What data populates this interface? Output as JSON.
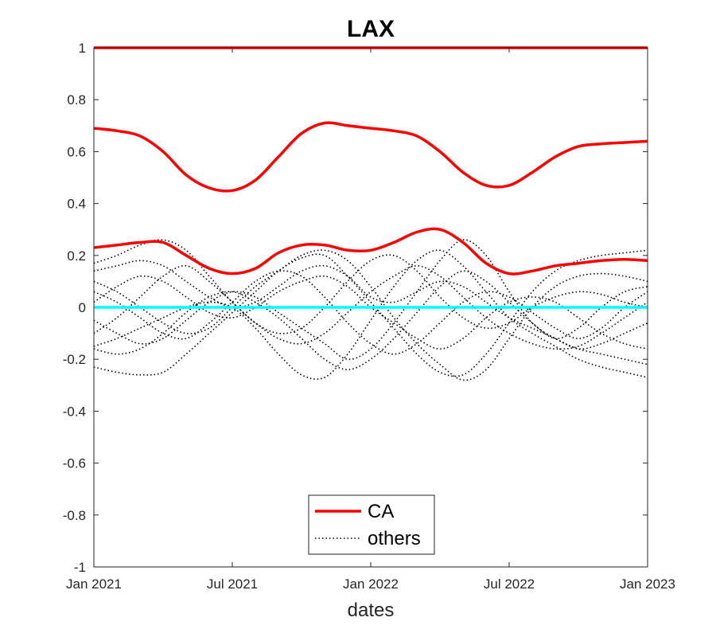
{
  "chart_data": {
    "type": "line",
    "title": "LAX",
    "xlabel": "dates",
    "ylabel": "",
    "ylim": [
      -1,
      1
    ],
    "xlim": [
      0,
      24
    ],
    "x_tick_values": [
      0,
      6,
      12,
      18,
      24
    ],
    "x_tick_labels": [
      "Jan 2021",
      "Jul 2021",
      "Jan 2022",
      "Jul 2022",
      "Jan 2023"
    ],
    "y_ticks": [
      -1,
      -0.8,
      -0.6,
      -0.4,
      -0.2,
      0,
      0.2,
      0.4,
      0.6,
      0.8,
      1
    ],
    "y_tick_labels": [
      "-1",
      "-0.8",
      "-0.6",
      "-0.4",
      "-0.2",
      "0",
      "0.2",
      "0.4",
      "0.6",
      "0.8",
      "1"
    ],
    "legend": {
      "location": "bottom-center",
      "entries": [
        "CA",
        "others"
      ]
    },
    "colors": {
      "ca": "#ff0000",
      "others": "#000000",
      "zero": "#00ffff"
    },
    "series": [
      {
        "name": "CA",
        "style": "solid",
        "color": "#ff0000",
        "x": [
          0,
          24
        ],
        "values": [
          1,
          1
        ]
      },
      {
        "name": "CA",
        "style": "solid",
        "color": "#ff0000",
        "x": [
          0,
          1,
          2,
          3,
          4,
          5,
          6,
          7,
          8,
          9,
          10,
          11,
          12,
          13,
          14,
          15,
          16,
          17,
          18,
          19,
          20,
          21,
          22,
          23,
          24
        ],
        "values": [
          0.69,
          0.68,
          0.66,
          0.6,
          0.51,
          0.46,
          0.45,
          0.49,
          0.58,
          0.67,
          0.71,
          0.7,
          0.69,
          0.68,
          0.66,
          0.6,
          0.52,
          0.47,
          0.47,
          0.52,
          0.58,
          0.62,
          0.63,
          0.635,
          0.64
        ]
      },
      {
        "name": "CA",
        "style": "solid",
        "color": "#ff0000",
        "x": [
          0,
          1,
          2,
          3,
          4,
          5,
          6,
          7,
          8,
          9,
          10,
          11,
          12,
          13,
          14,
          15,
          16,
          17,
          18,
          19,
          20,
          21,
          22,
          23,
          24
        ],
        "values": [
          0.23,
          0.24,
          0.25,
          0.25,
          0.2,
          0.15,
          0.13,
          0.15,
          0.21,
          0.24,
          0.24,
          0.22,
          0.22,
          0.25,
          0.29,
          0.3,
          0.25,
          0.17,
          0.13,
          0.14,
          0.16,
          0.17,
          0.18,
          0.185,
          0.18
        ]
      },
      {
        "name": "zero",
        "style": "solid",
        "color": "#00ffff",
        "x": [
          0,
          24
        ],
        "values": [
          0,
          0
        ]
      },
      {
        "name": "others",
        "style": "dotted",
        "color": "#000000",
        "x": [
          0,
          1,
          2,
          3,
          4,
          5,
          6,
          7,
          8,
          9,
          10,
          11,
          12,
          13,
          14,
          15,
          16,
          17,
          18,
          19,
          20,
          21,
          22,
          23,
          24
        ],
        "values": [
          -0.23,
          -0.25,
          -0.26,
          -0.25,
          -0.18,
          -0.1,
          -0.02,
          0.06,
          0.14,
          0.19,
          0.2,
          0.12,
          0.02,
          -0.08,
          -0.18,
          -0.25,
          -0.26,
          -0.18,
          -0.06,
          0.06,
          0.14,
          0.18,
          0.2,
          0.21,
          0.22
        ]
      },
      {
        "name": "others",
        "style": "dotted",
        "color": "#000000",
        "x": [
          0,
          1,
          2,
          3,
          4,
          5,
          6,
          7,
          8,
          9,
          10,
          11,
          12,
          13,
          14,
          15,
          16,
          17,
          18,
          19,
          20,
          21,
          22,
          23,
          24
        ],
        "values": [
          -0.15,
          -0.12,
          -0.08,
          -0.04,
          0.0,
          0.02,
          0.0,
          -0.08,
          -0.18,
          -0.26,
          -0.27,
          -0.18,
          -0.05,
          0.08,
          0.18,
          0.22,
          0.16,
          0.06,
          -0.04,
          -0.1,
          -0.15,
          -0.2,
          -0.23,
          -0.25,
          -0.27
        ]
      },
      {
        "name": "others",
        "style": "dotted",
        "color": "#000000",
        "x": [
          0,
          1,
          2,
          3,
          4,
          5,
          6,
          7,
          8,
          9,
          10,
          11,
          12,
          13,
          14,
          15,
          16,
          17,
          18,
          19,
          20,
          21,
          22,
          23,
          24
        ],
        "values": [
          0.17,
          0.2,
          0.24,
          0.26,
          0.22,
          0.12,
          0.02,
          -0.06,
          -0.12,
          -0.14,
          -0.1,
          -0.02,
          0.06,
          0.12,
          0.16,
          0.12,
          0.04,
          -0.04,
          -0.1,
          -0.14,
          -0.16,
          -0.15,
          -0.1,
          -0.04,
          0.02
        ]
      },
      {
        "name": "others",
        "style": "dotted",
        "color": "#000000",
        "x": [
          0,
          1,
          2,
          3,
          4,
          5,
          6,
          7,
          8,
          9,
          10,
          11,
          12,
          13,
          14,
          15,
          16,
          17,
          18,
          19,
          20,
          21,
          22,
          23,
          24
        ],
        "values": [
          0.1,
          0.06,
          0.0,
          -0.06,
          -0.1,
          -0.08,
          0.0,
          0.08,
          0.14,
          0.2,
          0.22,
          0.18,
          0.08,
          -0.04,
          -0.14,
          -0.22,
          -0.28,
          -0.24,
          -0.12,
          0.0,
          0.08,
          0.12,
          0.13,
          0.12,
          0.1
        ]
      },
      {
        "name": "others",
        "style": "dotted",
        "color": "#000000",
        "x": [
          0,
          1,
          2,
          3,
          4,
          5,
          6,
          7,
          8,
          9,
          10,
          11,
          12,
          13,
          14,
          15,
          16,
          17,
          18,
          19,
          20,
          21,
          22,
          23,
          24
        ],
        "values": [
          -0.05,
          -0.1,
          -0.14,
          -0.12,
          -0.05,
          0.02,
          0.06,
          0.04,
          -0.02,
          -0.08,
          -0.14,
          -0.2,
          -0.16,
          -0.06,
          0.06,
          0.18,
          0.26,
          0.2,
          0.06,
          -0.06,
          -0.12,
          -0.16,
          -0.18,
          -0.2,
          -0.22
        ]
      },
      {
        "name": "others",
        "style": "dotted",
        "color": "#000000",
        "x": [
          0,
          1,
          2,
          3,
          4,
          5,
          6,
          7,
          8,
          9,
          10,
          11,
          12,
          13,
          14,
          15,
          16,
          17,
          18,
          19,
          20,
          21,
          22,
          23,
          24
        ],
        "values": [
          0.02,
          0.08,
          0.12,
          0.1,
          0.04,
          -0.02,
          -0.04,
          0.0,
          0.06,
          0.1,
          0.12,
          0.08,
          0.0,
          -0.06,
          -0.12,
          -0.16,
          -0.12,
          -0.04,
          0.02,
          0.04,
          0.02,
          -0.04,
          -0.1,
          -0.14,
          -0.16
        ]
      },
      {
        "name": "others",
        "style": "dotted",
        "color": "#000000",
        "x": [
          0,
          1,
          2,
          3,
          4,
          5,
          6,
          7,
          8,
          9,
          10,
          11,
          12,
          13,
          14,
          15,
          16,
          17,
          18,
          19,
          20,
          21,
          22,
          23,
          24
        ],
        "values": [
          -0.1,
          -0.04,
          0.04,
          0.12,
          0.16,
          0.1,
          0.02,
          -0.06,
          -0.1,
          -0.08,
          0.0,
          0.1,
          0.18,
          0.2,
          0.14,
          0.04,
          -0.04,
          -0.08,
          -0.06,
          0.0,
          0.04,
          0.06,
          0.05,
          0.02,
          0.0
        ]
      },
      {
        "name": "others",
        "style": "dotted",
        "color": "#000000",
        "x": [
          0,
          1,
          2,
          3,
          4,
          5,
          6,
          7,
          8,
          9,
          10,
          11,
          12,
          13,
          14,
          15,
          16,
          17,
          18,
          19,
          20,
          21,
          22,
          23,
          24
        ],
        "values": [
          0.06,
          0.02,
          -0.04,
          -0.1,
          -0.12,
          -0.06,
          0.02,
          0.1,
          0.14,
          0.12,
          0.04,
          -0.06,
          -0.14,
          -0.18,
          -0.14,
          -0.06,
          0.02,
          0.06,
          0.04,
          -0.02,
          -0.08,
          -0.12,
          -0.08,
          0.0,
          0.06
        ]
      },
      {
        "name": "others",
        "style": "dotted",
        "color": "#000000",
        "x": [
          0,
          1,
          2,
          3,
          4,
          5,
          6,
          7,
          8,
          9,
          10,
          11,
          12,
          13,
          14,
          15,
          16,
          17,
          18,
          19,
          20,
          21,
          22,
          23,
          24
        ],
        "values": [
          -0.16,
          -0.18,
          -0.16,
          -0.1,
          -0.02,
          0.04,
          0.06,
          0.02,
          -0.04,
          -0.12,
          -0.2,
          -0.24,
          -0.2,
          -0.12,
          -0.02,
          0.08,
          0.14,
          0.1,
          0.02,
          -0.06,
          -0.12,
          -0.08,
          0.0,
          0.06,
          0.08
        ]
      },
      {
        "name": "others",
        "style": "dotted",
        "color": "#000000",
        "x": [
          0,
          1,
          2,
          3,
          4,
          5,
          6,
          7,
          8,
          9,
          10,
          11,
          12,
          13,
          14,
          15,
          16,
          17,
          18,
          19,
          20,
          21,
          22,
          23,
          24
        ],
        "values": [
          0.14,
          0.16,
          0.18,
          0.16,
          0.1,
          0.04,
          0.0,
          0.02,
          0.08,
          0.14,
          0.16,
          0.12,
          0.04,
          0.02,
          0.06,
          0.1,
          0.08,
          0.02,
          -0.04,
          -0.08,
          -0.12,
          -0.16,
          -0.14,
          -0.1,
          -0.06
        ]
      }
    ]
  }
}
